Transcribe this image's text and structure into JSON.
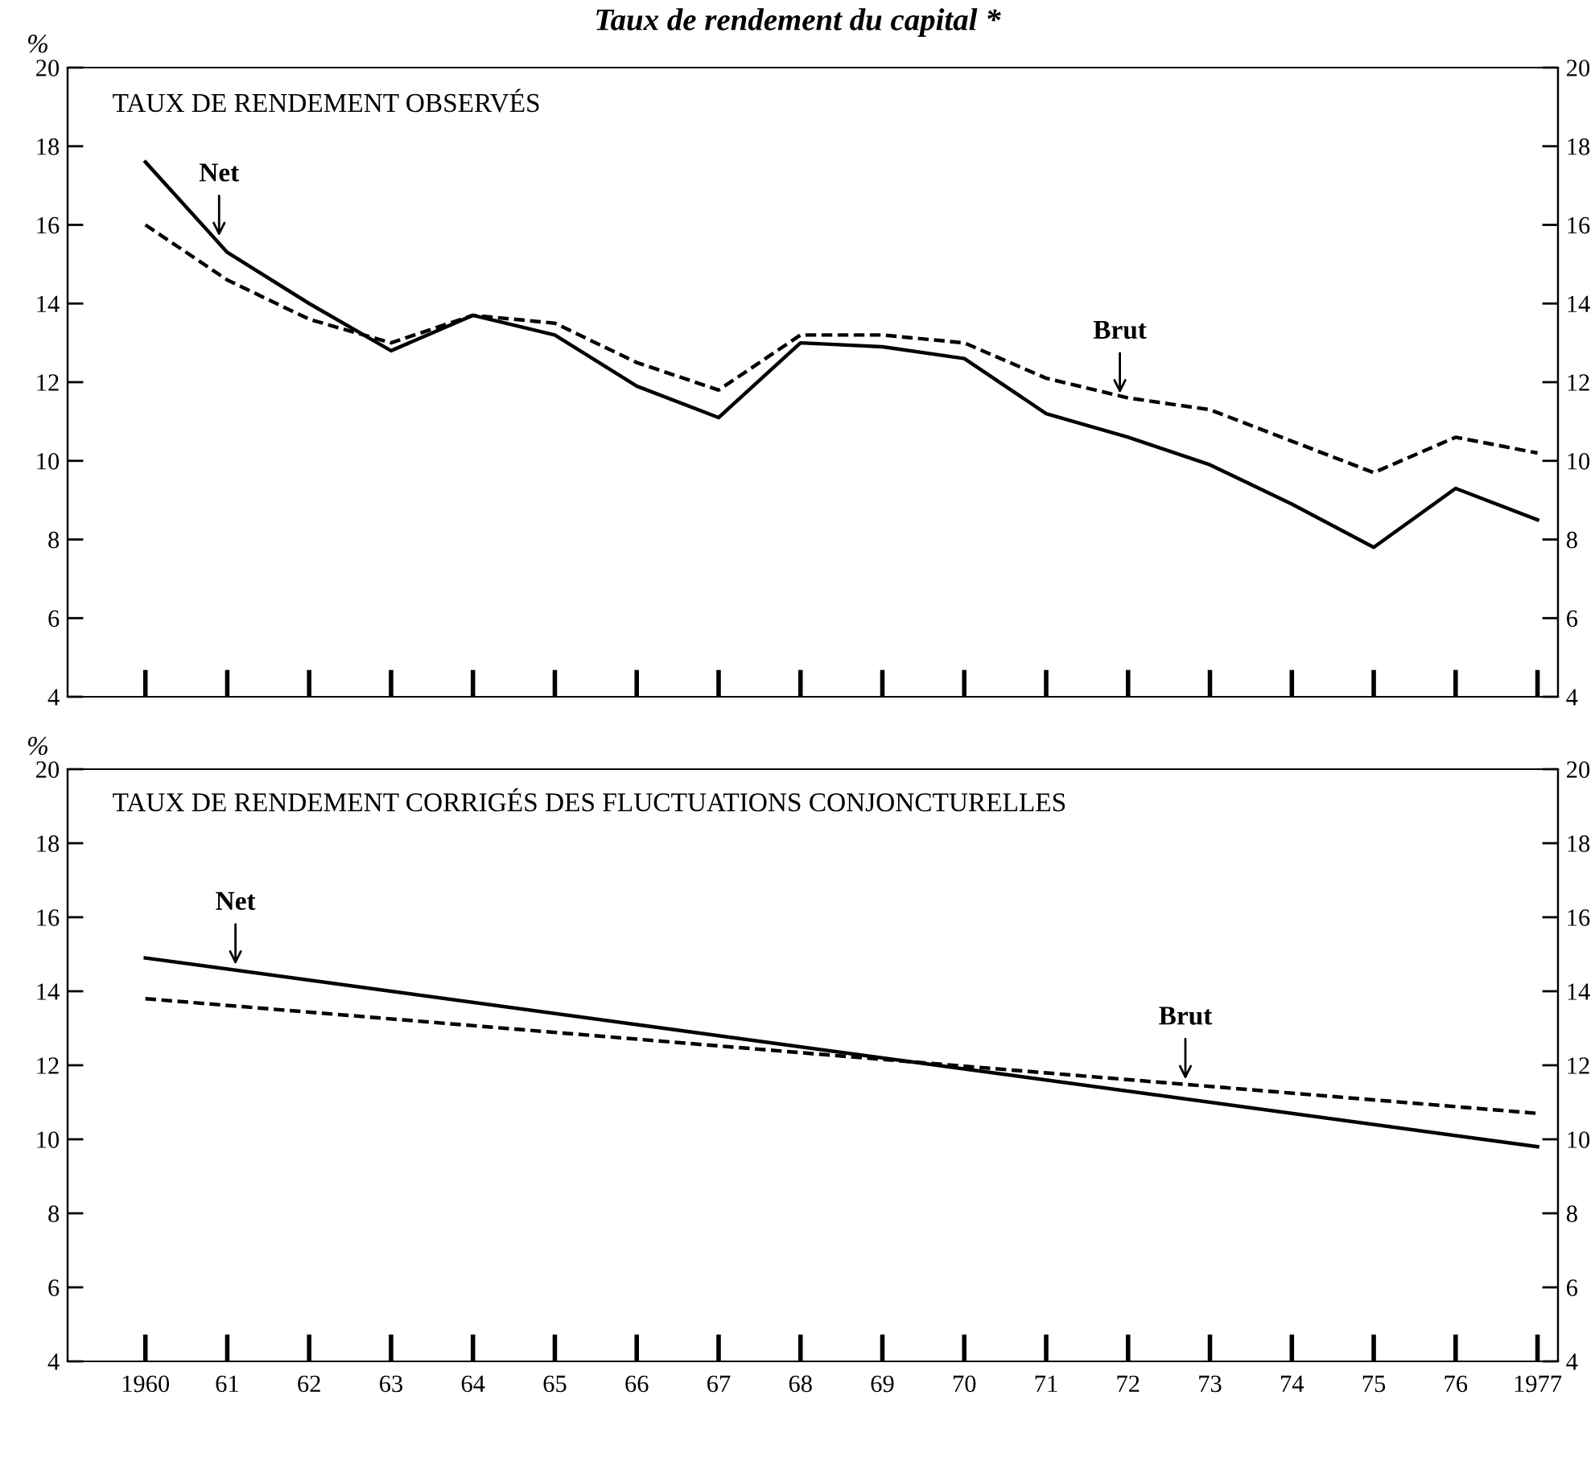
{
  "chart_data": [
    {
      "type": "line",
      "title": "Taux de rendement du capital *",
      "subtitle": "TAUX DE RENDEMENT OBSERVÉS",
      "ylabel": "%",
      "x": [
        1960,
        1961,
        1962,
        1963,
        1964,
        1965,
        1966,
        1967,
        1968,
        1969,
        1970,
        1971,
        1972,
        1973,
        1974,
        1975,
        1976,
        1977
      ],
      "xticks": [
        1960,
        1961,
        1962,
        1963,
        1964,
        1965,
        1966,
        1967,
        1968,
        1969,
        1970,
        1971,
        1972,
        1973,
        1974,
        1975,
        1976,
        1977
      ],
      "series": [
        {
          "color": "#000000",
          "line_style": "solid",
          "values": [
            17.6,
            15.3,
            14.0,
            12.8,
            13.7,
            13.2,
            11.9,
            11.1,
            13.0,
            12.9,
            12.6,
            11.2,
            10.6,
            9.9,
            8.9,
            7.8,
            9.3,
            8.5
          ]
        },
        {
          "color": "#000000",
          "line_style": "dashed",
          "values": [
            16.0,
            14.6,
            13.6,
            13.0,
            13.7,
            13.5,
            12.5,
            11.8,
            13.2,
            13.2,
            13.0,
            12.1,
            11.6,
            11.3,
            10.5,
            9.7,
            10.6,
            10.2
          ]
        }
      ],
      "xlim": [
        1959.05,
        1977.25
      ],
      "ylim": [
        4,
        20
      ],
      "yticks": [
        4,
        6,
        8,
        10,
        12,
        14,
        16,
        18,
        20
      ],
      "y2lim": [
        4,
        20
      ],
      "y2ticks": [
        4,
        6,
        8,
        10,
        12,
        14,
        16,
        18,
        20
      ],
      "tick_labels": "y",
      "grid": false,
      "legend": false,
      "marker": "none",
      "annotations": [
        {
          "text": "Net",
          "x": 1960.9,
          "y": 15.6
        },
        {
          "text": "Brut",
          "x": 1971.9,
          "y": 11.6
        }
      ]
    },
    {
      "type": "line",
      "subtitle": "TAUX DE RENDEMENT CORRIGÉS DES FLUCTUATIONS CONJONCTURELLES",
      "ylabel": "%",
      "x": [
        1960,
        1977
      ],
      "series": [
        {
          "color": "#000000",
          "line_style": "solid",
          "values": [
            14.9,
            9.8
          ]
        },
        {
          "color": "#000000",
          "line_style": "dashed",
          "values": [
            13.8,
            10.7
          ]
        }
      ],
      "xlim": [
        1959.05,
        1977.25
      ],
      "xticks": [
        {
          "value": 1960,
          "label": "1960"
        },
        {
          "value": 1961,
          "label": "61"
        },
        {
          "value": 1962,
          "label": "62"
        },
        {
          "value": 1963,
          "label": "63"
        },
        {
          "value": 1964,
          "label": "64"
        },
        {
          "value": 1965,
          "label": "65"
        },
        {
          "value": 1966,
          "label": "66"
        },
        {
          "value": 1967,
          "label": "67"
        },
        {
          "value": 1968,
          "label": "68"
        },
        {
          "value": 1969,
          "label": "69"
        },
        {
          "value": 1970,
          "label": "70"
        },
        {
          "value": 1971,
          "label": "71"
        },
        {
          "value": 1972,
          "label": "72"
        },
        {
          "value": 1973,
          "label": "73"
        },
        {
          "value": 1974,
          "label": "74"
        },
        {
          "value": 1975,
          "label": "75"
        },
        {
          "value": 1976,
          "label": "76"
        },
        {
          "value": 1977,
          "label": "1977"
        }
      ],
      "ylim": [
        4,
        20
      ],
      "yticks": [
        4,
        6,
        8,
        10,
        12,
        14,
        16,
        18,
        20
      ],
      "y2lim": [
        4,
        20
      ],
      "y2ticks": [
        4,
        6,
        8,
        10,
        12,
        14,
        16,
        18,
        20
      ],
      "grid": false,
      "legend": false,
      "marker": "none",
      "annotations": [
        {
          "text": "Net",
          "x": 1961.1,
          "y": 14.6
        },
        {
          "text": "Brut",
          "x": 1972.7,
          "y": 11.5
        }
      ]
    }
  ]
}
